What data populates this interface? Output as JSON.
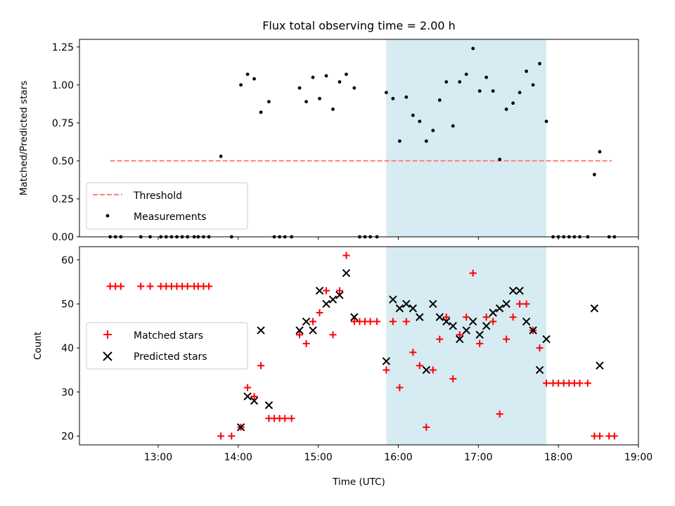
{
  "chart_data": [
    {
      "type": "scatter",
      "title": "Flux total observing time = 2.00 h",
      "ylabel": "Matched/Predicted stars",
      "xlim": [
        "12:01",
        "19:00"
      ],
      "ylim": [
        0,
        1.3
      ],
      "yticks": [
        "0.00",
        "0.25",
        "0.50",
        "0.75",
        "1.00",
        "1.25"
      ],
      "highlight_span": {
        "from": "15:51",
        "to": "17:51",
        "color": "#add8e6"
      },
      "legend_position": "lower-left",
      "threshold": {
        "name": "Threshold",
        "value": 0.5,
        "from": "12:24",
        "to": "18:40",
        "color": "#ff7f7f"
      },
      "series": [
        {
          "name": "Measurements",
          "color": "#000000",
          "points": [
            [
              "12:24",
              0
            ],
            [
              "12:28",
              0
            ],
            [
              "12:32",
              0
            ],
            [
              "12:47",
              0
            ],
            [
              "12:54",
              0
            ],
            [
              "13:02",
              0
            ],
            [
              "13:06",
              0
            ],
            [
              "13:10",
              0
            ],
            [
              "13:14",
              0
            ],
            [
              "13:18",
              0
            ],
            [
              "13:22",
              0
            ],
            [
              "13:27",
              0
            ],
            [
              "13:30",
              0
            ],
            [
              "13:34",
              0
            ],
            [
              "13:38",
              0
            ],
            [
              "13:47",
              0.53
            ],
            [
              "13:55",
              0
            ],
            [
              "14:02",
              1.0
            ],
            [
              "14:07",
              1.07
            ],
            [
              "14:12",
              1.04
            ],
            [
              "14:17",
              0.82
            ],
            [
              "14:23",
              0.89
            ],
            [
              "14:27",
              0
            ],
            [
              "14:31",
              0
            ],
            [
              "14:35",
              0
            ],
            [
              "14:40",
              0
            ],
            [
              "14:46",
              0.98
            ],
            [
              "14:51",
              0.89
            ],
            [
              "14:56",
              1.05
            ],
            [
              "15:01",
              0.91
            ],
            [
              "15:06",
              1.06
            ],
            [
              "15:11",
              0.84
            ],
            [
              "15:16",
              1.02
            ],
            [
              "15:21",
              1.07
            ],
            [
              "15:27",
              0.98
            ],
            [
              "15:31",
              0
            ],
            [
              "15:35",
              0
            ],
            [
              "15:39",
              0
            ],
            [
              "15:44",
              0
            ],
            [
              "15:51",
              0.95
            ],
            [
              "15:56",
              0.91
            ],
            [
              "16:01",
              0.63
            ],
            [
              "16:06",
              0.92
            ],
            [
              "16:11",
              0.8
            ],
            [
              "16:16",
              0.76
            ],
            [
              "16:21",
              0.63
            ],
            [
              "16:26",
              0.7
            ],
            [
              "16:31",
              0.9
            ],
            [
              "16:36",
              1.02
            ],
            [
              "16:41",
              0.73
            ],
            [
              "16:46",
              1.02
            ],
            [
              "16:51",
              1.07
            ],
            [
              "16:56",
              1.24
            ],
            [
              "17:01",
              0.96
            ],
            [
              "17:06",
              1.05
            ],
            [
              "17:11",
              0.96
            ],
            [
              "17:16",
              0.51
            ],
            [
              "17:21",
              0.84
            ],
            [
              "17:26",
              0.88
            ],
            [
              "17:31",
              0.95
            ],
            [
              "17:36",
              1.09
            ],
            [
              "17:41",
              1.0
            ],
            [
              "17:46",
              1.14
            ],
            [
              "17:51",
              0.76
            ],
            [
              "17:56",
              0
            ],
            [
              "18:00",
              0
            ],
            [
              "18:04",
              0
            ],
            [
              "18:08",
              0
            ],
            [
              "18:12",
              0
            ],
            [
              "18:16",
              0
            ],
            [
              "18:22",
              0
            ],
            [
              "18:27",
              0.41
            ],
            [
              "18:31",
              0.56
            ],
            [
              "18:38",
              0
            ],
            [
              "18:42",
              0
            ]
          ]
        }
      ]
    },
    {
      "type": "scatter",
      "ylabel": "Count",
      "xlabel": "Time (UTC)",
      "xlim": [
        "12:01",
        "19:00"
      ],
      "xticks": [
        "13:00",
        "14:00",
        "15:00",
        "16:00",
        "17:00",
        "18:00",
        "19:00"
      ],
      "ylim": [
        18,
        63
      ],
      "yticks": [
        "20",
        "30",
        "40",
        "50",
        "60"
      ],
      "highlight_span": {
        "from": "15:51",
        "to": "17:51",
        "color": "#add8e6"
      },
      "legend_position": "center-left",
      "series": [
        {
          "name": "Matched stars",
          "marker": "+",
          "color": "#ff0000",
          "points": [
            [
              "12:24",
              54
            ],
            [
              "12:28",
              54
            ],
            [
              "12:32",
              54
            ],
            [
              "12:47",
              54
            ],
            [
              "12:54",
              54
            ],
            [
              "13:02",
              54
            ],
            [
              "13:06",
              54
            ],
            [
              "13:10",
              54
            ],
            [
              "13:14",
              54
            ],
            [
              "13:18",
              54
            ],
            [
              "13:22",
              54
            ],
            [
              "13:27",
              54
            ],
            [
              "13:30",
              54
            ],
            [
              "13:34",
              54
            ],
            [
              "13:38",
              54
            ],
            [
              "13:47",
              20
            ],
            [
              "13:55",
              20
            ],
            [
              "14:02",
              22
            ],
            [
              "14:07",
              31
            ],
            [
              "14:12",
              29
            ],
            [
              "14:17",
              36
            ],
            [
              "14:23",
              24
            ],
            [
              "14:27",
              24
            ],
            [
              "14:31",
              24
            ],
            [
              "14:35",
              24
            ],
            [
              "14:40",
              24
            ],
            [
              "14:46",
              43
            ],
            [
              "14:51",
              41
            ],
            [
              "14:56",
              46
            ],
            [
              "15:01",
              48
            ],
            [
              "15:06",
              53
            ],
            [
              "15:11",
              43
            ],
            [
              "15:16",
              53
            ],
            [
              "15:21",
              61
            ],
            [
              "15:27",
              46
            ],
            [
              "15:31",
              46
            ],
            [
              "15:35",
              46
            ],
            [
              "15:39",
              46
            ],
            [
              "15:44",
              46
            ],
            [
              "15:51",
              35
            ],
            [
              "15:56",
              46
            ],
            [
              "16:01",
              31
            ],
            [
              "16:06",
              46
            ],
            [
              "16:11",
              39
            ],
            [
              "16:16",
              36
            ],
            [
              "16:21",
              22
            ],
            [
              "16:26",
              35
            ],
            [
              "16:31",
              42
            ],
            [
              "16:36",
              47
            ],
            [
              "16:41",
              33
            ],
            [
              "16:46",
              43
            ],
            [
              "16:51",
              47
            ],
            [
              "16:56",
              57
            ],
            [
              "17:01",
              41
            ],
            [
              "17:06",
              47
            ],
            [
              "17:11",
              46
            ],
            [
              "17:16",
              25
            ],
            [
              "17:21",
              42
            ],
            [
              "17:26",
              47
            ],
            [
              "17:31",
              50
            ],
            [
              "17:36",
              50
            ],
            [
              "17:41",
              44
            ],
            [
              "17:46",
              40
            ],
            [
              "17:51",
              32
            ],
            [
              "17:56",
              32
            ],
            [
              "18:00",
              32
            ],
            [
              "18:04",
              32
            ],
            [
              "18:08",
              32
            ],
            [
              "18:12",
              32
            ],
            [
              "18:16",
              32
            ],
            [
              "18:22",
              32
            ],
            [
              "18:27",
              20
            ],
            [
              "18:31",
              20
            ],
            [
              "18:38",
              20
            ],
            [
              "18:42",
              20
            ]
          ]
        },
        {
          "name": "Predicted stars",
          "marker": "x",
          "color": "#000000",
          "points": [
            [
              "14:02",
              22
            ],
            [
              "14:07",
              29
            ],
            [
              "14:12",
              28
            ],
            [
              "14:17",
              44
            ],
            [
              "14:23",
              27
            ],
            [
              "14:46",
              44
            ],
            [
              "14:51",
              46
            ],
            [
              "14:56",
              44
            ],
            [
              "15:01",
              53
            ],
            [
              "15:06",
              50
            ],
            [
              "15:11",
              51
            ],
            [
              "15:16",
              52
            ],
            [
              "15:21",
              57
            ],
            [
              "15:27",
              47
            ],
            [
              "15:51",
              37
            ],
            [
              "15:56",
              51
            ],
            [
              "16:01",
              49
            ],
            [
              "16:06",
              50
            ],
            [
              "16:11",
              49
            ],
            [
              "16:16",
              47
            ],
            [
              "16:21",
              35
            ],
            [
              "16:26",
              50
            ],
            [
              "16:31",
              47
            ],
            [
              "16:36",
              46
            ],
            [
              "16:41",
              45
            ],
            [
              "16:46",
              42
            ],
            [
              "16:51",
              44
            ],
            [
              "16:56",
              46
            ],
            [
              "17:01",
              43
            ],
            [
              "17:06",
              45
            ],
            [
              "17:11",
              48
            ],
            [
              "17:16",
              49
            ],
            [
              "17:21",
              50
            ],
            [
              "17:26",
              53
            ],
            [
              "17:31",
              53
            ],
            [
              "17:36",
              46
            ],
            [
              "17:41",
              44
            ],
            [
              "17:46",
              35
            ],
            [
              "17:51",
              42
            ],
            [
              "18:27",
              49
            ],
            [
              "18:31",
              36
            ]
          ]
        }
      ]
    }
  ]
}
